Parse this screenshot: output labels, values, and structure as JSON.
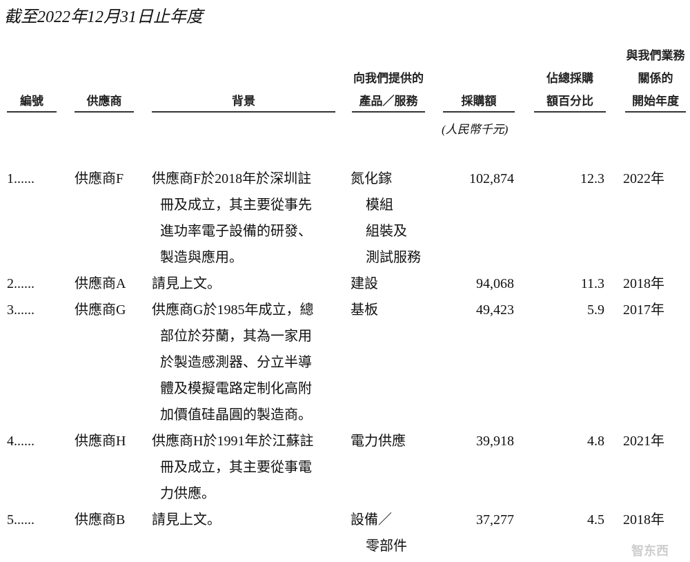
{
  "title": "截至2022年12月31日止年度",
  "headers": {
    "no": [
      "編號"
    ],
    "supplier": [
      "供應商"
    ],
    "background": [
      "背景"
    ],
    "product": [
      "向我們提供的",
      "產品／服務"
    ],
    "amount": [
      "採購額"
    ],
    "percent": [
      "佔總採購",
      "額百分比"
    ],
    "year": [
      "與我們業務",
      "關係的",
      "開始年度"
    ]
  },
  "unit": "(人民幣千元)",
  "rows": [
    {
      "no": "1......",
      "supplier": "供應商F",
      "background": [
        "供應商F於2018年於深圳註",
        "冊及成立，其主要從事先",
        "進功率電子設備的研發、",
        "製造與應用。"
      ],
      "product": [
        "氮化鎵",
        "模組",
        "組裝及",
        "測試服務"
      ],
      "amount": "102,874",
      "percent": "12.3",
      "year": "2022年"
    },
    {
      "no": "2......",
      "supplier": "供應商A",
      "background": [
        "請見上文。"
      ],
      "product": [
        "建設"
      ],
      "amount": "94,068",
      "percent": "11.3",
      "year": "2018年"
    },
    {
      "no": "3......",
      "supplier": "供應商G",
      "background": [
        "供應商G於1985年成立，總",
        "部位於芬蘭，其為一家用",
        "於製造感測器、分立半導",
        "體及模擬電路定制化高附",
        "加價值硅晶圓的製造商。"
      ],
      "product": [
        "基板"
      ],
      "amount": "49,423",
      "percent": "5.9",
      "year": "2017年"
    },
    {
      "no": "4......",
      "supplier": "供應商H",
      "background": [
        "供應商H於1991年於江蘇註",
        "冊及成立，其主要從事電",
        "力供應。"
      ],
      "product": [
        "電力供應"
      ],
      "amount": "39,918",
      "percent": "4.8",
      "year": "2021年"
    },
    {
      "no": "5......",
      "supplier": "供應商B",
      "background": [
        "請見上文。"
      ],
      "product": [
        "設備／",
        "零部件"
      ],
      "amount": "37,277",
      "percent": "4.5",
      "year": "2018年"
    }
  ],
  "watermark": "智东西"
}
